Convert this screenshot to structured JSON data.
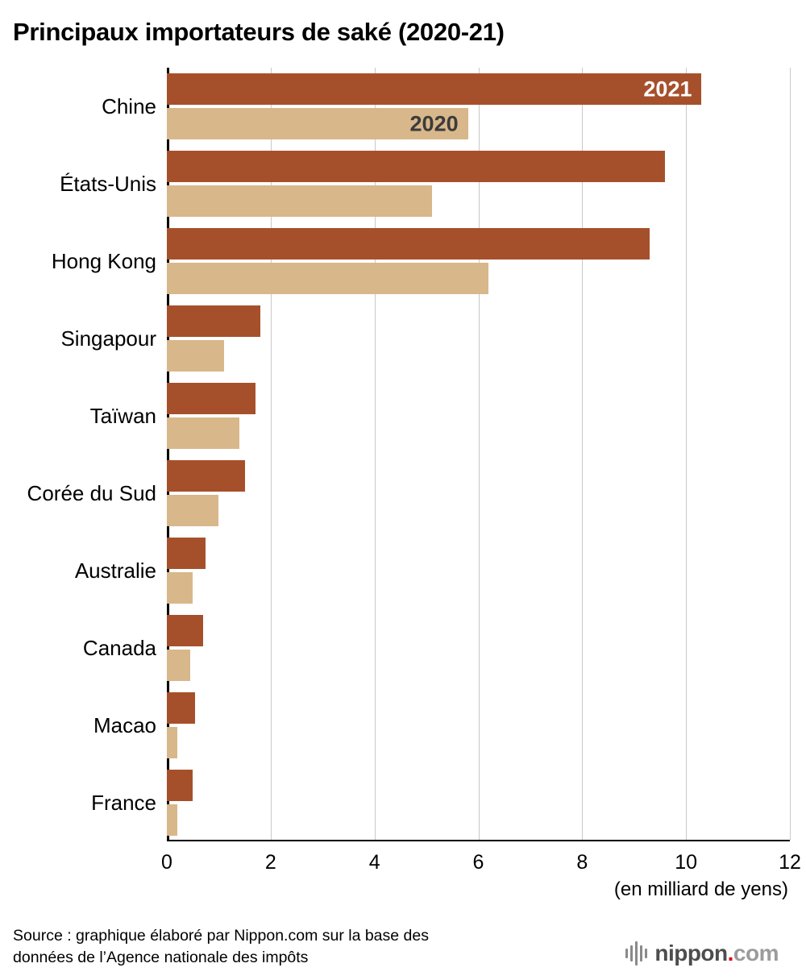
{
  "title": "Principaux importateurs de saké (2020-21)",
  "chart_data": {
    "type": "bar",
    "orientation": "horizontal",
    "title": "Principaux importateurs de saké (2020-21)",
    "categories": [
      "Chine",
      "États-Unis",
      "Hong Kong",
      "Singapour",
      "Taïwan",
      "Corée du Sud",
      "Australie",
      "Canada",
      "Macao",
      "France"
    ],
    "series": [
      {
        "name": "2021",
        "color": "#a6502b",
        "label_text_color": "#ffffff",
        "values": [
          10.3,
          9.6,
          9.3,
          1.8,
          1.7,
          1.5,
          0.75,
          0.7,
          0.55,
          0.5
        ]
      },
      {
        "name": "2020",
        "color": "#d8b78a",
        "label_text_color": "#3b3b3b",
        "values": [
          5.8,
          5.1,
          6.2,
          1.1,
          1.4,
          1.0,
          0.5,
          0.45,
          0.2,
          0.2
        ]
      }
    ],
    "xlim": [
      0,
      12
    ],
    "xticks": [
      0,
      2,
      4,
      6,
      8,
      10,
      12
    ],
    "xlabel": "(en milliard de yens)",
    "legend_position": "inside-first-bars",
    "grid": "vertical",
    "gridline_color": "#c9c9c9",
    "axis_color": "#000000"
  },
  "source": {
    "line1": "Source : graphique élaboré par Nippon.com sur la base des",
    "line2": "données de l’Agence nationale des impôts"
  },
  "logo": {
    "name": "nippon",
    "dot": ".",
    "suffix": "com"
  }
}
